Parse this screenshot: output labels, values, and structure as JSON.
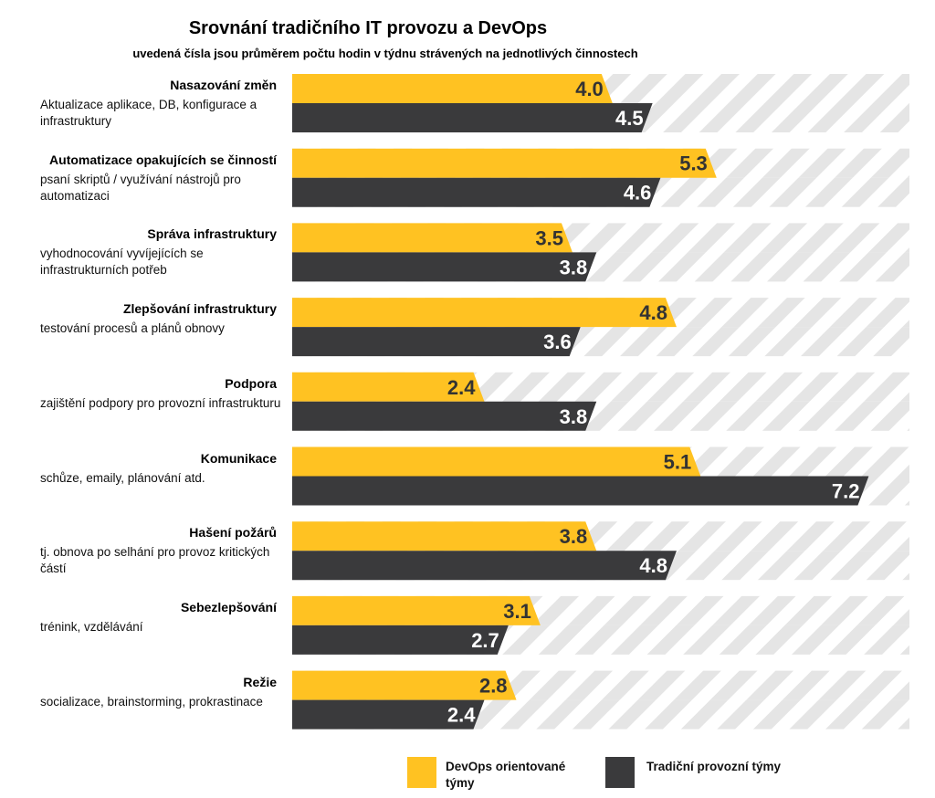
{
  "chart_data": {
    "type": "bar",
    "orientation": "horizontal",
    "title": "Srovnání tradičního IT provozu a DevOps",
    "subtitle": "uvedená čísla jsou průměrem počtu hodin v týdnu strávených na jednotlivých činnostech",
    "categories": [
      {
        "title": "Nasazování změn",
        "description": "Aktualizace aplikace, DB, konfigurace a infrastruktury"
      },
      {
        "title": "Automatizace opakujících se činností",
        "description": "psaní skriptů / využívání nástrojů pro automatizaci"
      },
      {
        "title": "Správa infrastruktury",
        "description": "vyhodnocování vyvíjejících se infrastrukturních potřeb"
      },
      {
        "title": "Zlepšování infrastruktury",
        "description": "testování procesů a plánů obnovy"
      },
      {
        "title": "Podpora",
        "description": "zajištění podpory pro provozní infrastrukturu"
      },
      {
        "title": "Komunikace",
        "description": "schůze, emaily, plánování atd."
      },
      {
        "title": "Hašení požárů",
        "description": "tj. obnova po selhání pro provoz kritických částí"
      },
      {
        "title": "Sebezlepšování",
        "description": "trénink, vzdělávání"
      },
      {
        "title": "Režie",
        "description": "socializace, brainstorming, prokrastinace"
      }
    ],
    "series": [
      {
        "name": "DevOps orientované týmy",
        "color": "#FFC222",
        "values": [
          4.0,
          5.3,
          3.5,
          4.8,
          2.4,
          5.1,
          3.8,
          3.1,
          2.8
        ]
      },
      {
        "name": "Tradiční provozní týmy",
        "color": "#3A3A3C",
        "values": [
          4.5,
          4.6,
          3.8,
          3.6,
          3.8,
          7.2,
          4.8,
          2.7,
          2.4
        ]
      }
    ],
    "xlim": [
      0,
      8
    ],
    "legend": "bottom",
    "grid": false,
    "background_pattern": "diagonal-stripes"
  }
}
